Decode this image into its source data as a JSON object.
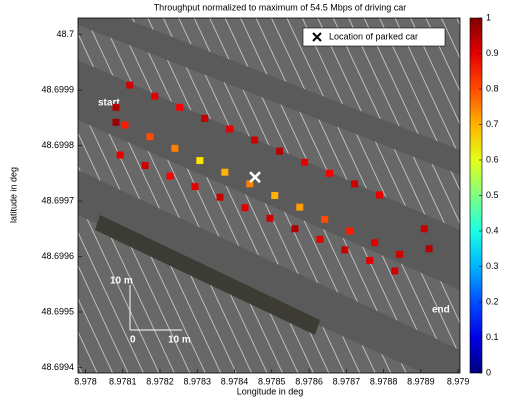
{
  "chart_data": {
    "type": "scatter",
    "title": "Throughput normalized to maximum of 54.5 Mbps of driving car",
    "x_label": "Longitude in deg",
    "y_label": "latitude in deg",
    "xlim": [
      8.97798,
      8.979005
    ],
    "ylim": [
      48.69939,
      48.70003
    ],
    "xticks": [
      8.978,
      8.9781,
      8.9782,
      8.9783,
      8.9784,
      8.9785,
      8.9786,
      8.9787,
      8.9788,
      8.9789,
      8.979
    ],
    "yticks": [
      48.6994,
      48.6995,
      48.6996,
      48.6997,
      48.6998,
      48.6999,
      48.7
    ],
    "clim": [
      0,
      1
    ],
    "cticks": [
      0,
      0.1,
      0.2,
      0.3,
      0.4,
      0.5,
      0.6,
      0.7,
      0.8,
      0.9,
      1
    ],
    "colormap": "jet",
    "x": [
      8.978106,
      8.978173,
      8.97824,
      8.978307,
      8.978374,
      8.978441,
      8.978508,
      8.978575,
      8.978642,
      8.978709,
      8.978776,
      8.978843,
      8.978093,
      8.97816,
      8.978227,
      8.978294,
      8.978361,
      8.978428,
      8.978495,
      8.978562,
      8.978629,
      8.978696,
      8.978763,
      8.97883,
      8.978119,
      8.978186,
      8.978253,
      8.97832,
      8.978387,
      8.978454,
      8.978521,
      8.978588,
      8.978655,
      8.978722,
      8.978789,
      8.978909,
      8.978922,
      8.978082,
      8.978082
    ],
    "y": [
      48.699837,
      48.699816,
      48.699795,
      48.699773,
      48.699752,
      48.699731,
      48.69971,
      48.699689,
      48.699667,
      48.699646,
      48.699625,
      48.699604,
      48.699783,
      48.699764,
      48.699745,
      48.699726,
      48.699707,
      48.699688,
      48.699669,
      48.69965,
      48.699631,
      48.699612,
      48.699593,
      48.699574,
      48.699909,
      48.699889,
      48.699869,
      48.699849,
      48.69983,
      48.69981,
      48.69979,
      48.69977,
      48.69975,
      48.699731,
      48.699711,
      48.69965,
      48.699614,
      48.699869,
      48.699842
    ],
    "values": [
      0.85,
      0.8,
      0.75,
      0.65,
      0.7,
      0.75,
      0.7,
      0.72,
      0.8,
      0.85,
      0.9,
      0.92,
      0.9,
      0.92,
      0.88,
      0.9,
      0.93,
      0.9,
      0.92,
      0.95,
      0.9,
      0.93,
      0.9,
      0.92,
      0.92,
      0.9,
      0.88,
      0.93,
      0.9,
      0.92,
      0.95,
      0.9,
      0.88,
      0.92,
      0.9,
      0.93,
      0.95,
      0.95,
      0.97
    ],
    "legend": "Location of parked car",
    "parked_car": {
      "x": 8.978455,
      "y": 48.699743
    },
    "annotations": {
      "start": "start",
      "end": "end",
      "scale_v": "10 m",
      "scale_h": "10 m",
      "origin": "0"
    }
  }
}
